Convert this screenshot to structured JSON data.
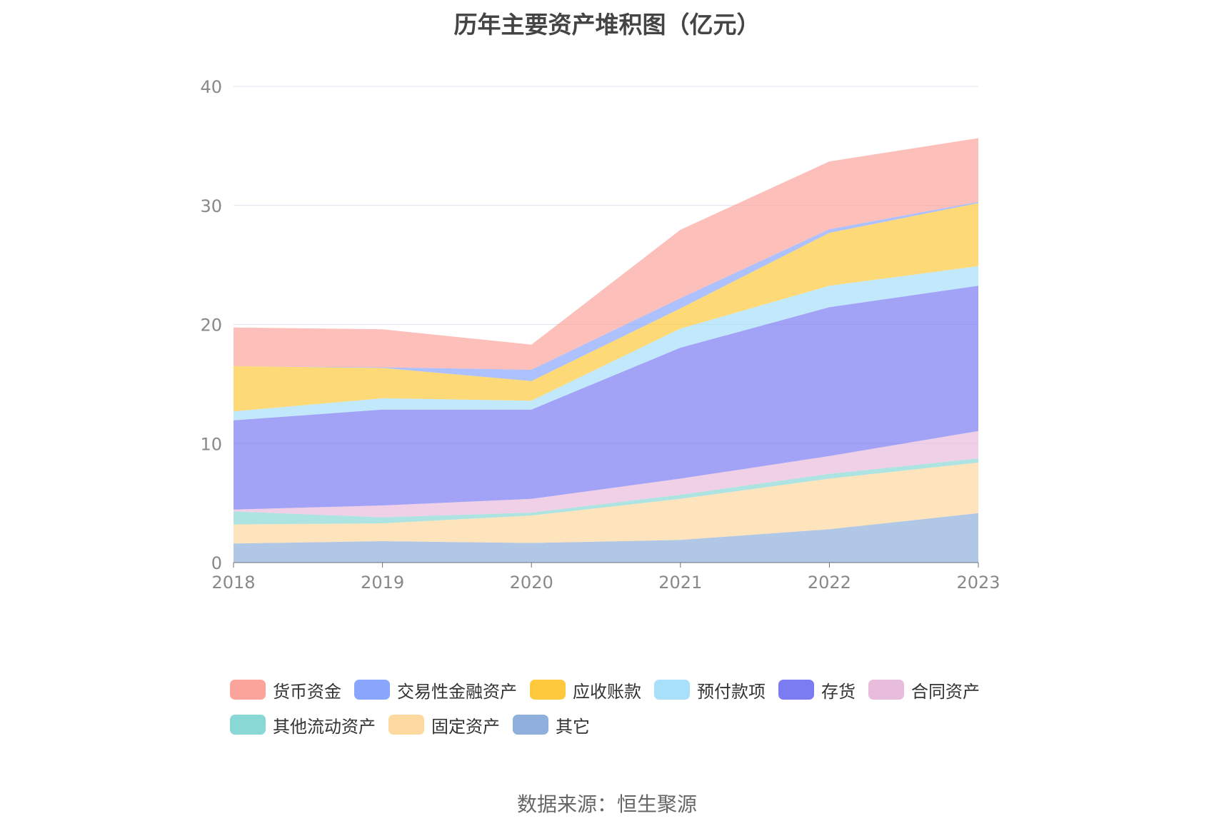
{
  "title": "历年主要资产堆积图（亿元）",
  "source": "数据来源：恒生聚源",
  "chart_data": {
    "type": "area",
    "stacked": true,
    "x": [
      "2018",
      "2019",
      "2020",
      "2021",
      "2022",
      "2023"
    ],
    "ylim": [
      0,
      40
    ],
    "yticks": [
      "0",
      "10",
      "20",
      "30",
      "40"
    ],
    "grid": true,
    "legend_position": "bottom",
    "series": [
      {
        "name": "其它",
        "color": "#8fb0dc",
        "values": [
          1.6,
          1.8,
          1.65,
          1.9,
          2.8,
          4.15
        ]
      },
      {
        "name": "固定资产",
        "color": "#fdd9a0",
        "values": [
          1.6,
          1.5,
          2.3,
          3.45,
          4.25,
          4.25
        ]
      },
      {
        "name": "其他流动资产",
        "color": "#8ad8d6",
        "values": [
          1.1,
          0.5,
          0.25,
          0.35,
          0.4,
          0.35
        ]
      },
      {
        "name": "合同资产",
        "color": "#e8bcdc",
        "values": [
          0.15,
          1.0,
          1.15,
          1.35,
          1.5,
          2.3
        ]
      },
      {
        "name": "存货",
        "color": "#7b7cf2",
        "values": [
          7.5,
          8.05,
          7.5,
          11.0,
          12.5,
          12.2
        ]
      },
      {
        "name": "预付款项",
        "color": "#a8e0fa",
        "values": [
          0.75,
          0.95,
          0.75,
          1.6,
          1.8,
          1.65
        ]
      },
      {
        "name": "应收账款",
        "color": "#fec93d",
        "values": [
          3.8,
          2.55,
          1.65,
          1.7,
          4.45,
          5.3
        ]
      },
      {
        "name": "交易性金融资产",
        "color": "#89a6fc",
        "values": [
          0,
          0.05,
          0.95,
          0.85,
          0.3,
          0.1
        ]
      },
      {
        "name": "货币资金",
        "color": "#fba49c",
        "values": [
          3.25,
          3.2,
          2.1,
          5.75,
          5.7,
          5.35
        ]
      }
    ]
  },
  "legend": {
    "row1": [
      {
        "name": "货币资金",
        "color": "#fba49c"
      },
      {
        "name": "交易性金融资产",
        "color": "#89a6fc"
      },
      {
        "name": "应收账款",
        "color": "#fec93d"
      },
      {
        "name": "预付款项",
        "color": "#a8e0fa"
      },
      {
        "name": "存货",
        "color": "#7b7cf2"
      },
      {
        "name": "合同资产",
        "color": "#e8bcdc"
      }
    ],
    "row2": [
      {
        "name": "其他流动资产",
        "color": "#8ad8d6"
      },
      {
        "name": "固定资产",
        "color": "#fdd9a0"
      },
      {
        "name": "其它",
        "color": "#8fb0dc"
      }
    ]
  }
}
